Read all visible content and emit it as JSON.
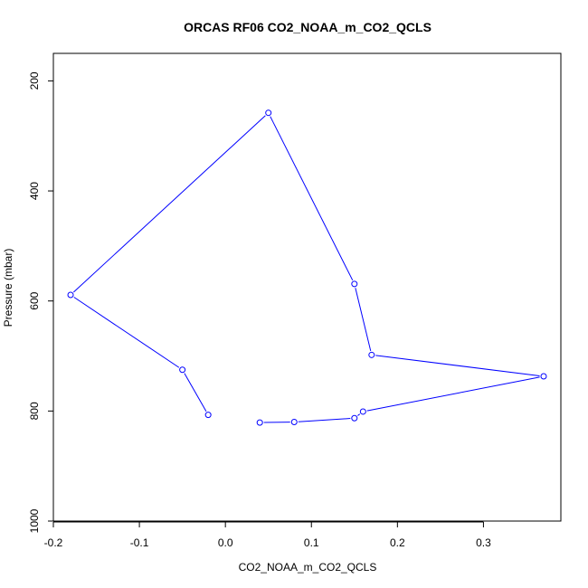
{
  "chart_data": {
    "type": "line",
    "title": "ORCAS RF06 CO2_NOAA_m_CO2_QCLS",
    "xlabel": "CO2_NOAA_m_CO2_QCLS",
    "ylabel": "Pressure (mbar)",
    "xlim": [
      -0.2,
      0.39
    ],
    "ylim": [
      1000,
      150
    ],
    "y_axis_inverted": true,
    "x_ticks": [
      -0.2,
      -0.1,
      0.0,
      0.1,
      0.2,
      0.3
    ],
    "x_tick_labels": [
      "-0.2",
      "-0.1",
      "0.0",
      "0.1",
      "0.2",
      "0.3"
    ],
    "y_ticks": [
      200,
      400,
      600,
      800,
      1000
    ],
    "y_tick_labels": [
      "200",
      "400",
      "600",
      "800",
      "1000"
    ],
    "grid": false,
    "series": [
      {
        "color": "#0000ff",
        "marker": "open-circle",
        "points": [
          {
            "x": 0.04,
            "y": 821
          },
          {
            "x": 0.08,
            "y": 820
          },
          {
            "x": 0.15,
            "y": 813
          },
          {
            "x": 0.16,
            "y": 801
          },
          {
            "x": 0.37,
            "y": 737
          },
          {
            "x": 0.17,
            "y": 698
          },
          {
            "x": 0.15,
            "y": 569
          },
          {
            "x": 0.05,
            "y": 258
          },
          {
            "x": -0.18,
            "y": 589
          },
          {
            "x": -0.05,
            "y": 725
          },
          {
            "x": -0.02,
            "y": 807
          }
        ]
      }
    ]
  }
}
